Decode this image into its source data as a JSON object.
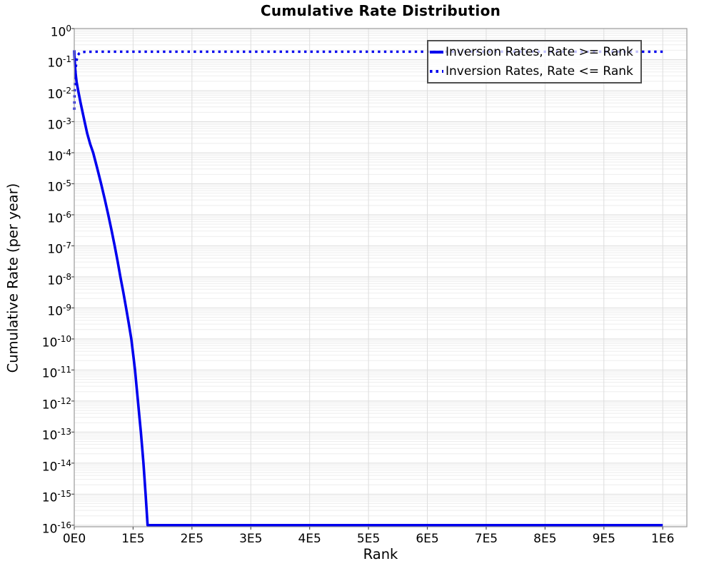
{
  "chart_data": {
    "type": "line",
    "title": "Cumulative Rate Distribution",
    "xlabel": "Rank",
    "ylabel": "Cumulative Rate (per year)",
    "grid": true,
    "legend_position": "upper right",
    "x_ticks": [
      {
        "value": 0,
        "label": "0E0"
      },
      {
        "value": 100000,
        "label": "1E5"
      },
      {
        "value": 200000,
        "label": "2E5"
      },
      {
        "value": 300000,
        "label": "3E5"
      },
      {
        "value": 400000,
        "label": "4E5"
      },
      {
        "value": 500000,
        "label": "5E5"
      },
      {
        "value": 600000,
        "label": "6E5"
      },
      {
        "value": 700000,
        "label": "7E5"
      },
      {
        "value": 800000,
        "label": "8E5"
      },
      {
        "value": 900000,
        "label": "9E5"
      },
      {
        "value": 1000000,
        "label": "1E6"
      }
    ],
    "y_tick_base": "10",
    "y_tick_exponents": [
      0,
      -1,
      -2,
      -3,
      -4,
      -5,
      -6,
      -7,
      -8,
      -9,
      -10,
      -11,
      -12,
      -13,
      -14,
      -15,
      -16
    ],
    "xlim": [
      0,
      1041000
    ],
    "ylim_exp": [
      -16.05,
      0
    ],
    "colors": {
      "line": "#0000ee",
      "grid_major": "#dddddd",
      "grid_minor": "#eeeeee",
      "spine": "#9a9a9a",
      "tick": "#555555",
      "text": "#000000"
    },
    "series": [
      {
        "name": "Inversion Rates, Rate >= Rank",
        "style": "solid",
        "color": "#0000ee",
        "points": [
          [
            0,
            0.2
          ],
          [
            300,
            0.14
          ],
          [
            800,
            0.09
          ],
          [
            1500,
            0.055
          ],
          [
            2500,
            0.032
          ],
          [
            4000,
            0.019
          ],
          [
            6700,
            0.01
          ],
          [
            10500,
            0.0042
          ],
          [
            14000,
            0.0021
          ],
          [
            17600,
            0.001
          ],
          [
            22000,
            0.00042
          ],
          [
            27000,
            0.00019
          ],
          [
            32200,
            0.0001
          ],
          [
            39000,
            3.2e-05
          ],
          [
            45600,
            1e-05
          ],
          [
            51800,
            3.2e-06
          ],
          [
            57700,
            1e-06
          ],
          [
            63300,
            3.2e-07
          ],
          [
            68700,
            1e-07
          ],
          [
            73600,
            3.2e-08
          ],
          [
            78400,
            1e-08
          ],
          [
            83300,
            3.2e-09
          ],
          [
            88100,
            1e-09
          ],
          [
            92600,
            3.2e-10
          ],
          [
            97000,
            1e-10
          ],
          [
            100100,
            3.2e-11
          ],
          [
            103200,
            1e-11
          ],
          [
            105700,
            3.2e-12
          ],
          [
            108200,
            1e-12
          ],
          [
            110700,
            3.2e-13
          ],
          [
            113200,
            1e-13
          ],
          [
            115400,
            3.2e-14
          ],
          [
            117600,
            1e-14
          ],
          [
            119400,
            3.2e-15
          ],
          [
            121200,
            1e-15
          ],
          [
            122900,
            3.2e-16
          ],
          [
            124600,
            1e-16
          ],
          [
            1000000,
            1e-16
          ]
        ]
      },
      {
        "name": "Inversion Rates, Rate <= Rank",
        "style": "dotted",
        "color": "#0000ee",
        "points": [
          [
            0,
            0.0024
          ],
          [
            400,
            0.0065
          ],
          [
            900,
            0.014
          ],
          [
            1700,
            0.03
          ],
          [
            2800,
            0.06
          ],
          [
            4200,
            0.1
          ],
          [
            6200,
            0.14
          ],
          [
            8800,
            0.162
          ],
          [
            12000,
            0.172
          ],
          [
            18000,
            0.177
          ],
          [
            30000,
            0.179
          ],
          [
            60000,
            0.18
          ],
          [
            1000000,
            0.18
          ]
        ]
      }
    ]
  }
}
